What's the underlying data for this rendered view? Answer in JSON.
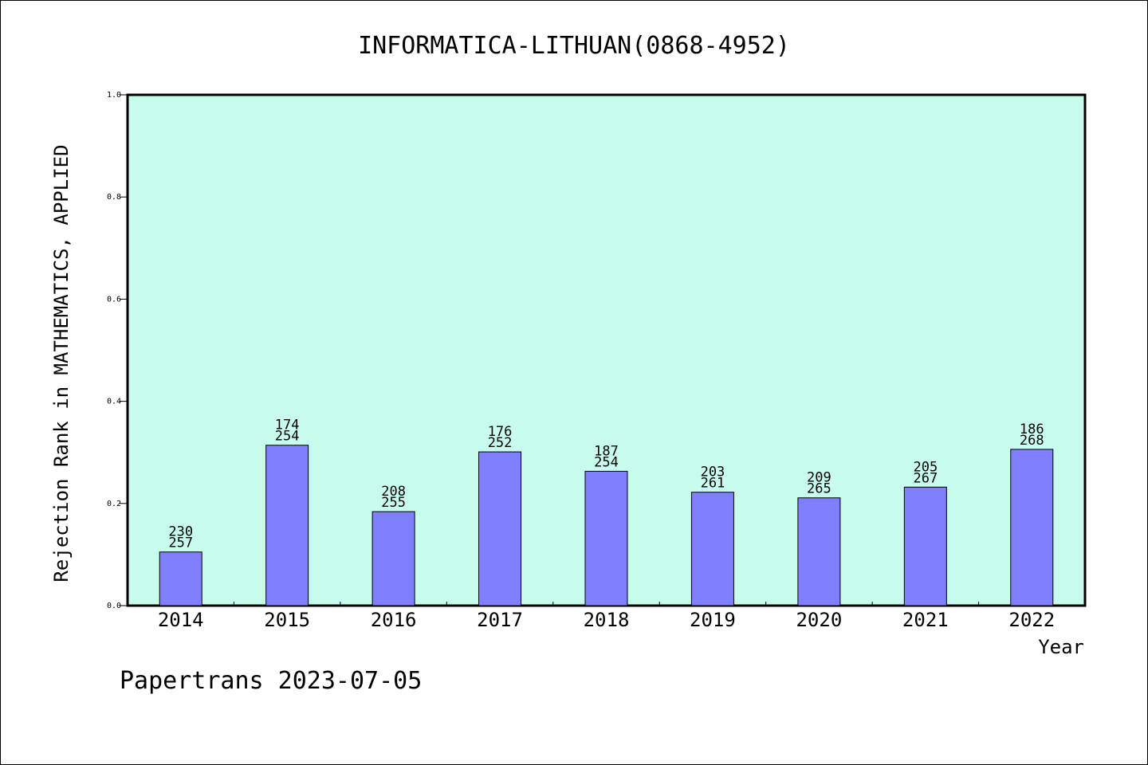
{
  "chart_data": {
    "type": "bar",
    "title": "INFORMATICA-LITHUAN(0868-4952)",
    "xlabel": "Year",
    "ylabel": "Rejection Rank in MATHEMATICS, APPLIED",
    "categories": [
      "2014",
      "2015",
      "2016",
      "2017",
      "2018",
      "2019",
      "2020",
      "2021",
      "2022"
    ],
    "values": [
      0.105,
      0.314,
      0.184,
      0.301,
      0.263,
      0.222,
      0.211,
      0.232,
      0.306
    ],
    "annotations": [
      [
        "230",
        "257"
      ],
      [
        "174",
        "254"
      ],
      [
        "208",
        "255"
      ],
      [
        "176",
        "252"
      ],
      [
        "187",
        "254"
      ],
      [
        "203",
        "261"
      ],
      [
        "209",
        "265"
      ],
      [
        "205",
        "267"
      ],
      [
        "186",
        "268"
      ]
    ],
    "ylim": [
      0,
      1.0
    ],
    "yticks": [
      "0.0",
      "0.2",
      "0.4",
      "0.6",
      "0.8",
      "1.0"
    ],
    "grid": false,
    "legend": "none",
    "colors": {
      "plot_background": "#c8fcee",
      "bar_fill": "#8080ff",
      "bar_stroke": "#000000"
    }
  },
  "footer": "Papertrans 2023-07-05"
}
